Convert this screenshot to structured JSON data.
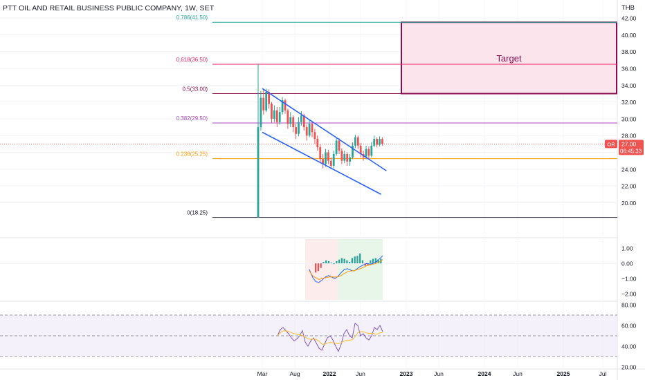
{
  "header": {
    "title": "PTT OIL AND RETAIL BUSINESS PUBLIC COMPANY, 1W, SET",
    "currency": "THB"
  },
  "price_tag": {
    "symbol": "OR",
    "price": "27.00",
    "countdown": "06:45:33"
  },
  "colors": {
    "up": "#26a69a",
    "down": "#ef5350",
    "channel": "#2962ff",
    "target_border": "#880e4f",
    "target_fill": "#fce4ec",
    "fib_786": "#26a69a",
    "fib_618": "#e91e63",
    "fib_5": "#880e4f",
    "fib_382": "#ab47bc",
    "fib_236": "#ff9800",
    "fib_0": "#131722",
    "rsi": "#7e57c2"
  },
  "chart_data": [
    {
      "type": "candlestick",
      "ylim": [
        16.0,
        43.0
      ],
      "y_ticks": [
        "20.00",
        "22.00",
        "24.00",
        "26.00",
        "28.00",
        "30.00",
        "32.00",
        "34.00",
        "36.00",
        "38.00",
        "40.00",
        "42.00"
      ],
      "x_ticks": [
        "Mar",
        "Aug",
        "2022",
        "Jun",
        "2023",
        "Jun",
        "2024",
        "Jun",
        "2025",
        "Jul"
      ],
      "fib_levels": [
        {
          "label": "0.786(41.50)",
          "value": 41.5
        },
        {
          "label": "0.618(36.50)",
          "value": 36.5
        },
        {
          "label": "0.5(33.00)",
          "value": 33.0
        },
        {
          "label": "0.382(29.50)",
          "value": 29.5
        },
        {
          "label": "0.236(25.25)",
          "value": 25.25
        },
        {
          "label": "0(18.25)",
          "value": 18.25
        }
      ],
      "target_zone": {
        "label": "Target",
        "from": 33.0,
        "to": 41.5
      },
      "last_price": 27.0,
      "candles": [
        [
          18.25,
          29.0,
          36.5,
          18.25
        ],
        [
          29.0,
          32.5,
          33.3,
          28.6
        ],
        [
          32.5,
          31.0,
          33.6,
          30.5
        ],
        [
          31.0,
          33.2,
          33.6,
          30.8
        ],
        [
          33.2,
          31.8,
          33.5,
          31.2
        ],
        [
          31.8,
          30.0,
          32.0,
          29.5
        ],
        [
          30.0,
          31.0,
          31.6,
          29.6
        ],
        [
          31.0,
          29.6,
          31.4,
          29.0
        ],
        [
          29.6,
          30.8,
          31.4,
          29.3
        ],
        [
          30.8,
          32.2,
          32.6,
          30.5
        ],
        [
          32.2,
          31.0,
          32.4,
          30.6
        ],
        [
          31.0,
          29.4,
          31.2,
          28.8
        ],
        [
          29.4,
          30.2,
          30.8,
          29.0
        ],
        [
          30.2,
          29.0,
          30.4,
          28.4
        ],
        [
          29.0,
          28.2,
          29.4,
          27.6
        ],
        [
          28.2,
          29.6,
          30.2,
          27.9
        ],
        [
          29.6,
          30.4,
          30.9,
          29.2
        ],
        [
          30.4,
          29.0,
          30.6,
          28.6
        ],
        [
          29.0,
          28.0,
          29.3,
          27.4
        ],
        [
          28.0,
          29.4,
          29.9,
          27.8
        ],
        [
          29.4,
          28.4,
          29.6,
          27.8
        ],
        [
          28.4,
          27.6,
          28.8,
          27.0
        ],
        [
          27.6,
          26.6,
          28.0,
          26.2
        ],
        [
          26.6,
          25.2,
          27.0,
          24.8
        ],
        [
          25.2,
          24.6,
          25.8,
          24.1
        ],
        [
          24.6,
          26.0,
          26.4,
          24.3
        ],
        [
          26.0,
          25.0,
          26.3,
          24.6
        ],
        [
          25.0,
          24.4,
          25.4,
          24.0
        ],
        [
          24.4,
          25.8,
          26.2,
          24.1
        ],
        [
          25.8,
          27.4,
          27.8,
          25.6
        ],
        [
          27.4,
          26.2,
          27.7,
          25.8
        ],
        [
          26.2,
          25.0,
          26.5,
          24.6
        ],
        [
          25.0,
          25.8,
          26.2,
          24.7
        ],
        [
          25.8,
          24.9,
          26.0,
          24.4
        ],
        [
          24.9,
          25.4,
          25.8,
          24.4
        ],
        [
          25.4,
          26.8,
          27.2,
          25.2
        ],
        [
          26.8,
          27.8,
          28.1,
          26.5
        ],
        [
          27.8,
          26.8,
          28.0,
          26.4
        ],
        [
          26.8,
          25.8,
          27.1,
          25.4
        ],
        [
          25.8,
          25.4,
          26.2,
          25.0
        ],
        [
          25.4,
          26.4,
          26.8,
          25.2
        ],
        [
          26.4,
          25.6,
          26.7,
          25.2
        ],
        [
          25.6,
          26.8,
          27.2,
          25.4
        ],
        [
          26.8,
          27.6,
          28.0,
          26.6
        ],
        [
          27.6,
          26.9,
          27.8,
          26.6
        ],
        [
          26.9,
          27.6,
          27.9,
          26.7
        ],
        [
          27.6,
          27.0,
          27.8,
          26.8
        ]
      ],
      "channel": [
        [
          [
            0,
            33.6
          ],
          [
            46,
            23.8
          ]
        ],
        [
          [
            0,
            28.4
          ],
          [
            44,
            21.0
          ]
        ]
      ]
    },
    {
      "type": "histogram",
      "ylim": [
        -2.4,
        1.6
      ],
      "y_ticks": [
        "1.00",
        "0.00",
        "−1.00",
        "−2.00"
      ],
      "macd_line": [
        -0.4,
        -0.9,
        -1.2,
        -1.25,
        -1.1,
        -0.9,
        -0.8,
        -0.9,
        -1.0,
        -0.85,
        -0.6,
        -0.4,
        -0.35,
        -0.45,
        -0.5,
        -0.35,
        -0.2,
        -0.1,
        0.0,
        -0.05,
        0.0,
        0.1,
        0.3,
        0.5
      ],
      "signal_line": [
        -0.5,
        -0.8,
        -0.95,
        -1.05,
        -1.0,
        -0.95,
        -0.9,
        -0.88,
        -0.9,
        -0.88,
        -0.8,
        -0.65,
        -0.55,
        -0.5,
        -0.48,
        -0.42,
        -0.35,
        -0.25,
        -0.15,
        -0.1,
        -0.05,
        0.0,
        0.1,
        0.25
      ],
      "histogram": [
        -0.6,
        -0.5,
        -0.3,
        0.1,
        0.2,
        0.15,
        0.05,
        0.0,
        0.15,
        0.25,
        0.35,
        0.3,
        0.2,
        0.1,
        0.35,
        0.45,
        0.5,
        0.65,
        0.2,
        -0.15,
        -0.1,
        0.2,
        0.3,
        0.35,
        0.25,
        0.3
      ]
    },
    {
      "type": "line",
      "ylim": [
        18.0,
        82.0
      ],
      "y_ticks": [
        "80.00",
        "60.00",
        "40.00",
        "20.00"
      ],
      "rsi": [
        50,
        56,
        58,
        55,
        52,
        48,
        45,
        47,
        50,
        55,
        44,
        40,
        45,
        48,
        43,
        38,
        36,
        42,
        48,
        50,
        46,
        40,
        35,
        42,
        52,
        56,
        50,
        48,
        62,
        60,
        50,
        52,
        48,
        46,
        50,
        58,
        56,
        60,
        54
      ],
      "bands": [
        70,
        50,
        30
      ]
    }
  ]
}
